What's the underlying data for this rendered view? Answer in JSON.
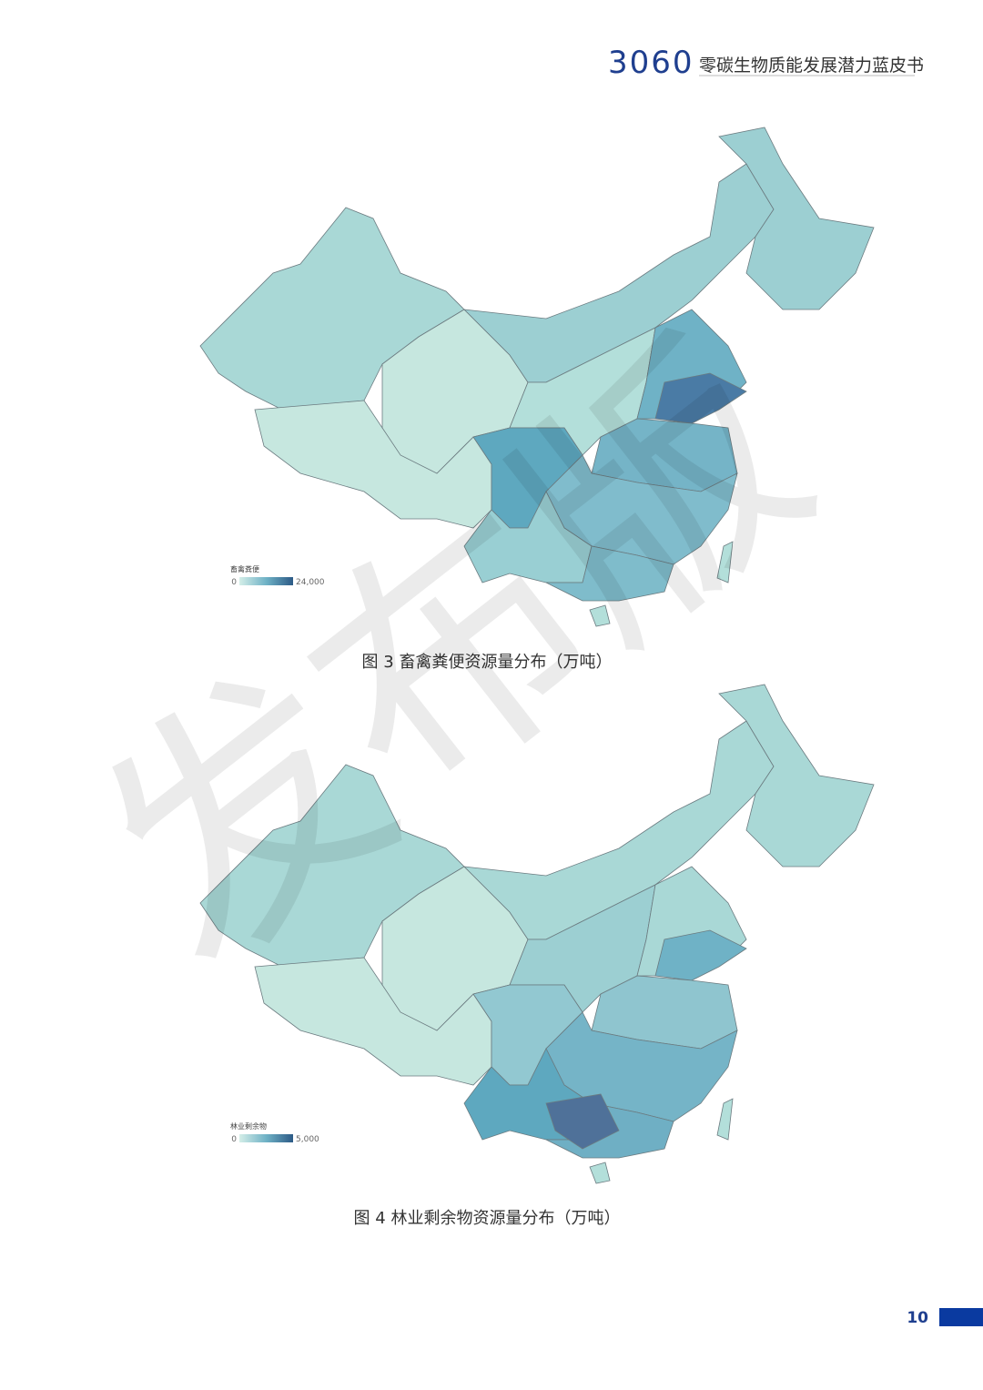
{
  "header": {
    "brand": "3060",
    "title": "零碳生物质能发展潜力蓝皮书"
  },
  "figures": [
    {
      "legend_title": "畜禽粪便",
      "legend_min": "0",
      "legend_max": "24,000",
      "caption": "图 3  畜禽粪便资源量分布（万吨）"
    },
    {
      "legend_title": "林业剩余物",
      "legend_min": "0",
      "legend_max": "5,000",
      "caption": "图 4  林业剩余物资源量分布（万吨）"
    }
  ],
  "watermark": "发布版",
  "page_number": "10"
}
